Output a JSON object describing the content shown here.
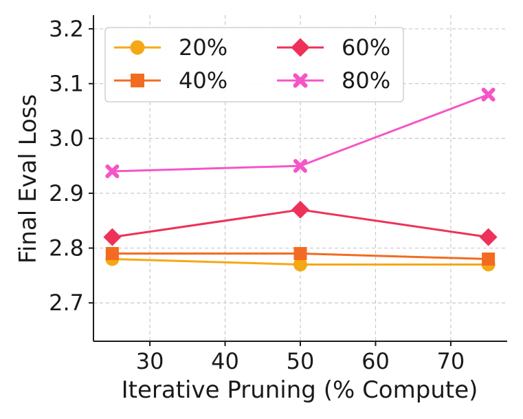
{
  "chart_data": {
    "type": "line",
    "title": "",
    "xlabel": "Iterative Pruning (% Compute)",
    "ylabel": "Final Eval Loss",
    "x": [
      25,
      50,
      75
    ],
    "xlim": [
      22.5,
      77.5
    ],
    "ylim": [
      2.63,
      3.225
    ],
    "xticks": [
      30,
      40,
      50,
      60,
      70
    ],
    "yticks": [
      2.7,
      2.8,
      2.9,
      3.0,
      3.1,
      3.2
    ],
    "ytick_labels": [
      "2.7",
      "2.8",
      "2.9",
      "3.0",
      "3.1",
      "3.2"
    ],
    "grid": true,
    "legend_position": "top-left",
    "legend_columns": 2,
    "series": [
      {
        "name": "20%",
        "values": [
          2.78,
          2.77,
          2.77
        ],
        "color": "#F5A815",
        "marker": "circle"
      },
      {
        "name": "40%",
        "values": [
          2.79,
          2.79,
          2.78
        ],
        "color": "#F26B21",
        "marker": "square"
      },
      {
        "name": "60%",
        "values": [
          2.82,
          2.87,
          2.82
        ],
        "color": "#EE3158",
        "marker": "diamond"
      },
      {
        "name": "80%",
        "values": [
          2.94,
          2.95,
          3.08
        ],
        "color": "#F555C7",
        "marker": "x"
      }
    ]
  }
}
